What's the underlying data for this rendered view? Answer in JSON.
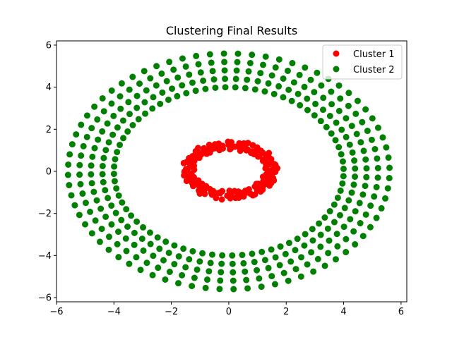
{
  "chart_data": {
    "type": "scatter",
    "title": "Clustering Final Results",
    "xlabel": "",
    "ylabel": "",
    "xlim": [
      -6.0,
      6.2
    ],
    "ylim": [
      -6.2,
      6.2
    ],
    "xticks": [
      -6,
      -4,
      -2,
      0,
      2,
      4,
      6
    ],
    "yticks": [
      -6,
      -4,
      -2,
      0,
      2,
      4,
      6
    ],
    "xtick_labels": [
      "−6",
      "−4",
      "−2",
      "0",
      "2",
      "4",
      "6"
    ],
    "ytick_labels": [
      "−6",
      "−4",
      "−2",
      "0",
      "2",
      "4",
      "6"
    ],
    "grid": false,
    "legend_position": "top-right",
    "series": [
      {
        "name": "Cluster 1",
        "color": "#ff0000",
        "shape": "rings",
        "rings": [
          {
            "rx": 1.3,
            "ry": 1.05
          },
          {
            "rx": 1.45,
            "ry": 1.2
          },
          {
            "rx": 1.6,
            "ry": 1.35
          }
        ],
        "points_per_ring": 50,
        "center": [
          0.05,
          0.05
        ],
        "spread": 0.08
      },
      {
        "name": "Cluster 2",
        "color": "#008000",
        "shape": "spokes",
        "spoke_count": 72,
        "radii": [
          4.0,
          4.4,
          4.8,
          5.2,
          5.6
        ],
        "center": [
          0.0,
          0.0
        ]
      }
    ]
  }
}
